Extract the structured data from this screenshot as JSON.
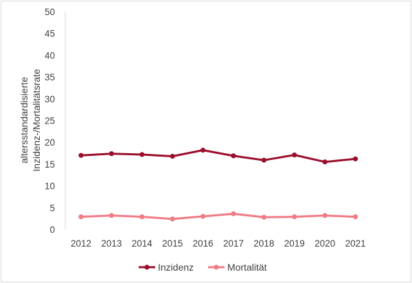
{
  "chart_data": {
    "type": "line",
    "title": "",
    "xlabel": "",
    "ylabel_line1": "altersstandardisierte",
    "ylabel_line2": "Inzidenz-/Mortalitätsrate",
    "categories": [
      "2012",
      "2013",
      "2014",
      "2015",
      "2016",
      "2017",
      "2018",
      "2019",
      "2020",
      "2021"
    ],
    "ylim": [
      0,
      50
    ],
    "yticks": [
      0,
      5,
      10,
      15,
      20,
      25,
      30,
      35,
      40,
      45,
      50
    ],
    "grid": false,
    "legend_position": "bottom",
    "series": [
      {
        "name": "Inzidenz",
        "color": "#9b0f2c",
        "values": [
          17.0,
          17.4,
          17.2,
          16.8,
          18.2,
          16.9,
          15.9,
          17.1,
          15.5,
          16.2
        ]
      },
      {
        "name": "Mortalität",
        "color": "#f07b85",
        "values": [
          2.9,
          3.2,
          2.9,
          2.4,
          3.0,
          3.6,
          2.8,
          2.9,
          3.2,
          2.9
        ]
      }
    ]
  }
}
